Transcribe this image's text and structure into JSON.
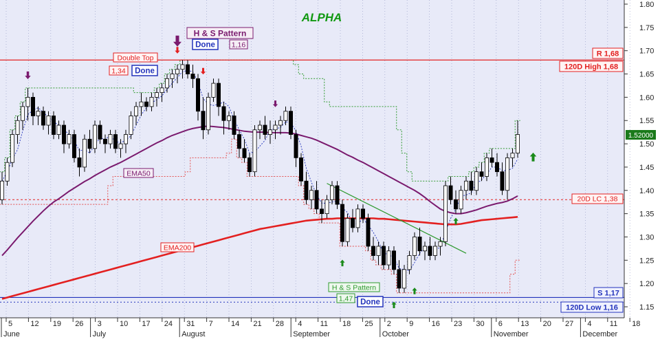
{
  "chart_data": {
    "type": "candlestick",
    "title": "ALPHA",
    "ylim": [
      1.14,
      1.81
    ],
    "y_ticks": [
      "1.15",
      "1.20",
      "1.25",
      "1.30",
      "1.35",
      "1.40",
      "1.45",
      "1.50",
      "1.55",
      "1.60",
      "1.65",
      "1.70",
      "1.75",
      "1.80"
    ],
    "x_day_ticks": [
      "5",
      "12",
      "19",
      "26",
      "3",
      "10",
      "17",
      "24",
      "31",
      "7",
      "14",
      "21",
      "28",
      "4",
      "11",
      "18",
      "25",
      "2",
      "9",
      "16",
      "23",
      "30",
      "6",
      "13",
      "20",
      "27",
      "4",
      "11",
      "18"
    ],
    "x_month_labels": [
      "June",
      "July",
      "August",
      "September",
      "October",
      "November",
      "December"
    ],
    "last_price": "1.52000",
    "grid": "vertical dotted",
    "colors": {
      "background": "#e8eaf8",
      "bull_candle": "#ffffff",
      "bear_candle": "#000000",
      "ema50": "#7a1a6e",
      "ema200": "#e32020",
      "trendline": "#2e9a2e",
      "resistance": "#e32020",
      "support": "#2233bb",
      "title": "#119911"
    },
    "candles": [
      [
        1.38,
        1.44,
        1.37,
        1.42
      ],
      [
        1.42,
        1.47,
        1.41,
        1.46
      ],
      [
        1.46,
        1.53,
        1.45,
        1.52
      ],
      [
        1.52,
        1.56,
        1.5,
        1.55
      ],
      [
        1.55,
        1.59,
        1.53,
        1.58
      ],
      [
        1.58,
        1.62,
        1.55,
        1.6
      ],
      [
        1.6,
        1.61,
        1.54,
        1.56
      ],
      [
        1.56,
        1.58,
        1.54,
        1.57
      ],
      [
        1.57,
        1.58,
        1.53,
        1.54
      ],
      [
        1.54,
        1.57,
        1.52,
        1.56
      ],
      [
        1.56,
        1.57,
        1.51,
        1.52
      ],
      [
        1.52,
        1.55,
        1.51,
        1.54
      ],
      [
        1.54,
        1.55,
        1.48,
        1.5
      ],
      [
        1.5,
        1.53,
        1.49,
        1.52
      ],
      [
        1.52,
        1.53,
        1.46,
        1.47
      ],
      [
        1.47,
        1.49,
        1.43,
        1.45
      ],
      [
        1.45,
        1.52,
        1.44,
        1.51
      ],
      [
        1.51,
        1.53,
        1.48,
        1.49
      ],
      [
        1.49,
        1.55,
        1.48,
        1.54
      ],
      [
        1.54,
        1.55,
        1.5,
        1.51
      ],
      [
        1.51,
        1.52,
        1.48,
        1.5
      ],
      [
        1.5,
        1.53,
        1.49,
        1.52
      ],
      [
        1.52,
        1.53,
        1.48,
        1.49
      ],
      [
        1.49,
        1.51,
        1.47,
        1.5
      ],
      [
        1.5,
        1.53,
        1.48,
        1.52
      ],
      [
        1.52,
        1.57,
        1.51,
        1.56
      ],
      [
        1.56,
        1.59,
        1.54,
        1.58
      ],
      [
        1.58,
        1.61,
        1.56,
        1.59
      ],
      [
        1.59,
        1.6,
        1.57,
        1.58
      ],
      [
        1.58,
        1.61,
        1.57,
        1.6
      ],
      [
        1.6,
        1.62,
        1.58,
        1.61
      ],
      [
        1.61,
        1.63,
        1.59,
        1.62
      ],
      [
        1.62,
        1.65,
        1.61,
        1.64
      ],
      [
        1.64,
        1.66,
        1.62,
        1.65
      ],
      [
        1.65,
        1.67,
        1.63,
        1.66
      ],
      [
        1.66,
        1.68,
        1.64,
        1.67
      ],
      [
        1.67,
        1.68,
        1.64,
        1.65
      ],
      [
        1.65,
        1.67,
        1.62,
        1.64
      ],
      [
        1.64,
        1.65,
        1.55,
        1.57
      ],
      [
        1.57,
        1.6,
        1.51,
        1.53
      ],
      [
        1.53,
        1.61,
        1.52,
        1.6
      ],
      [
        1.6,
        1.64,
        1.59,
        1.63
      ],
      [
        1.63,
        1.64,
        1.56,
        1.58
      ],
      [
        1.58,
        1.59,
        1.52,
        1.55
      ],
      [
        1.55,
        1.57,
        1.53,
        1.56
      ],
      [
        1.56,
        1.57,
        1.51,
        1.52
      ],
      [
        1.52,
        1.53,
        1.47,
        1.49
      ],
      [
        1.49,
        1.51,
        1.46,
        1.47
      ],
      [
        1.47,
        1.48,
        1.43,
        1.44
      ],
      [
        1.44,
        1.54,
        1.43,
        1.53
      ],
      [
        1.53,
        1.55,
        1.51,
        1.54
      ],
      [
        1.54,
        1.56,
        1.51,
        1.52
      ],
      [
        1.52,
        1.55,
        1.5,
        1.53
      ],
      [
        1.53,
        1.55,
        1.51,
        1.54
      ],
      [
        1.54,
        1.56,
        1.52,
        1.55
      ],
      [
        1.55,
        1.58,
        1.54,
        1.57
      ],
      [
        1.57,
        1.58,
        1.51,
        1.52
      ],
      [
        1.52,
        1.53,
        1.45,
        1.47
      ],
      [
        1.47,
        1.48,
        1.41,
        1.42
      ],
      [
        1.42,
        1.44,
        1.37,
        1.38
      ],
      [
        1.38,
        1.41,
        1.36,
        1.4
      ],
      [
        1.4,
        1.42,
        1.35,
        1.36
      ],
      [
        1.36,
        1.38,
        1.33,
        1.35
      ],
      [
        1.35,
        1.39,
        1.34,
        1.38
      ],
      [
        1.38,
        1.42,
        1.37,
        1.41
      ],
      [
        1.41,
        1.42,
        1.36,
        1.37
      ],
      [
        1.37,
        1.38,
        1.28,
        1.29
      ],
      [
        1.29,
        1.35,
        1.28,
        1.34
      ],
      [
        1.34,
        1.36,
        1.31,
        1.32
      ],
      [
        1.32,
        1.37,
        1.31,
        1.36
      ],
      [
        1.36,
        1.37,
        1.33,
        1.34
      ],
      [
        1.34,
        1.35,
        1.27,
        1.28
      ],
      [
        1.28,
        1.3,
        1.25,
        1.26
      ],
      [
        1.26,
        1.29,
        1.24,
        1.28
      ],
      [
        1.28,
        1.29,
        1.23,
        1.24
      ],
      [
        1.24,
        1.28,
        1.23,
        1.27
      ],
      [
        1.27,
        1.28,
        1.22,
        1.23
      ],
      [
        1.23,
        1.25,
        1.18,
        1.19
      ],
      [
        1.19,
        1.24,
        1.18,
        1.23
      ],
      [
        1.23,
        1.27,
        1.22,
        1.26
      ],
      [
        1.26,
        1.31,
        1.25,
        1.3
      ],
      [
        1.3,
        1.32,
        1.26,
        1.27
      ],
      [
        1.27,
        1.29,
        1.25,
        1.28
      ],
      [
        1.28,
        1.3,
        1.25,
        1.26
      ],
      [
        1.26,
        1.29,
        1.25,
        1.28
      ],
      [
        1.28,
        1.3,
        1.26,
        1.29
      ],
      [
        1.29,
        1.42,
        1.28,
        1.41
      ],
      [
        1.41,
        1.43,
        1.37,
        1.38
      ],
      [
        1.38,
        1.4,
        1.35,
        1.36
      ],
      [
        1.36,
        1.41,
        1.35,
        1.4
      ],
      [
        1.4,
        1.43,
        1.38,
        1.42
      ],
      [
        1.42,
        1.44,
        1.39,
        1.4
      ],
      [
        1.4,
        1.45,
        1.39,
        1.44
      ],
      [
        1.44,
        1.46,
        1.42,
        1.43
      ],
      [
        1.43,
        1.48,
        1.42,
        1.47
      ],
      [
        1.47,
        1.49,
        1.45,
        1.46
      ],
      [
        1.46,
        1.48,
        1.43,
        1.44
      ],
      [
        1.44,
        1.46,
        1.39,
        1.4
      ],
      [
        1.4,
        1.48,
        1.38,
        1.47
      ],
      [
        1.47,
        1.49,
        1.45,
        1.48
      ],
      [
        1.48,
        1.55,
        1.47,
        1.52
      ]
    ]
  },
  "indicators": {
    "ema50_label": "EMA50",
    "ema200_label": "EMA200",
    "ema50": [
      1.26,
      1.272,
      1.285,
      1.298,
      1.31,
      1.322,
      1.334,
      1.345,
      1.356,
      1.366,
      1.375,
      1.382,
      1.39,
      1.398,
      1.405,
      1.412,
      1.419,
      1.425,
      1.432,
      1.438,
      1.444,
      1.45,
      1.455,
      1.46,
      1.466,
      1.472,
      1.478,
      1.484,
      1.49,
      1.496,
      1.502,
      1.507,
      1.513,
      1.518,
      1.522,
      1.526,
      1.53,
      1.533,
      1.535,
      1.537,
      1.538,
      1.537,
      1.536,
      1.535,
      1.533,
      1.531,
      1.529,
      1.527,
      1.526,
      1.525,
      1.525,
      1.525,
      1.524,
      1.524,
      1.524,
      1.524,
      1.523,
      1.521,
      1.518,
      1.515,
      1.512,
      1.508,
      1.503,
      1.498,
      1.493,
      1.488,
      1.482,
      1.476,
      1.471,
      1.465,
      1.46,
      1.454,
      1.448,
      1.442,
      1.436,
      1.43,
      1.424,
      1.418,
      1.412,
      1.406,
      1.4,
      1.393,
      1.385,
      1.376,
      1.368,
      1.36,
      1.355,
      1.352,
      1.35,
      1.35,
      1.352,
      1.355,
      1.358,
      1.362,
      1.366,
      1.369,
      1.372,
      1.374,
      1.377,
      1.382,
      1.388
    ],
    "ema200": [
      1.167,
      1.17,
      1.173,
      1.176,
      1.179,
      1.182,
      1.185,
      1.188,
      1.191,
      1.194,
      1.197,
      1.2,
      1.203,
      1.206,
      1.209,
      1.212,
      1.215,
      1.218,
      1.221,
      1.224,
      1.227,
      1.23,
      1.233,
      1.236,
      1.239,
      1.242,
      1.245,
      1.248,
      1.251,
      1.254,
      1.257,
      1.26,
      1.263,
      1.266,
      1.269,
      1.272,
      1.275,
      1.278,
      1.281,
      1.284,
      1.287,
      1.29,
      1.293,
      1.296,
      1.299,
      1.302,
      1.305,
      1.308,
      1.311,
      1.314,
      1.317,
      1.319,
      1.321,
      1.323,
      1.325,
      1.327,
      1.329,
      1.331,
      1.333,
      1.335,
      1.336,
      1.337,
      1.338,
      1.339,
      1.339,
      1.34,
      1.34,
      1.34,
      1.34,
      1.34,
      1.34,
      1.34,
      1.34,
      1.339,
      1.339,
      1.338,
      1.337,
      1.336,
      1.335,
      1.334,
      1.333,
      1.332,
      1.331,
      1.33,
      1.329,
      1.328,
      1.327,
      1.327,
      1.327,
      1.328,
      1.33,
      1.332,
      1.334,
      1.336,
      1.337,
      1.338,
      1.339,
      1.34,
      1.341,
      1.342,
      1.343
    ]
  },
  "levels": {
    "resistance_value": 1.68,
    "resistance_label": "R 1,68",
    "high_value": 1.68,
    "high_label": "120D High 1,68",
    "lc20_value": 1.38,
    "lc20_label": "20D LC 1,38",
    "support_value": 1.17,
    "support_label": "S 1,17",
    "low_value": 1.16,
    "low_label": "120D Low 1,16"
  },
  "annotations": {
    "double_top_label": "Double Top",
    "double_top_value": "1,34",
    "double_top_status": "Done",
    "hs_top_label": "H & S Pattern",
    "hs_top_status": "Done",
    "hs_top_value": "1,16",
    "hs_bottom_label": "H & S Pattern",
    "hs_bottom_value": "1,47",
    "hs_bottom_status": "Done"
  },
  "labels": {
    "title": "ALPHA",
    "last_price": "1.52000"
  }
}
